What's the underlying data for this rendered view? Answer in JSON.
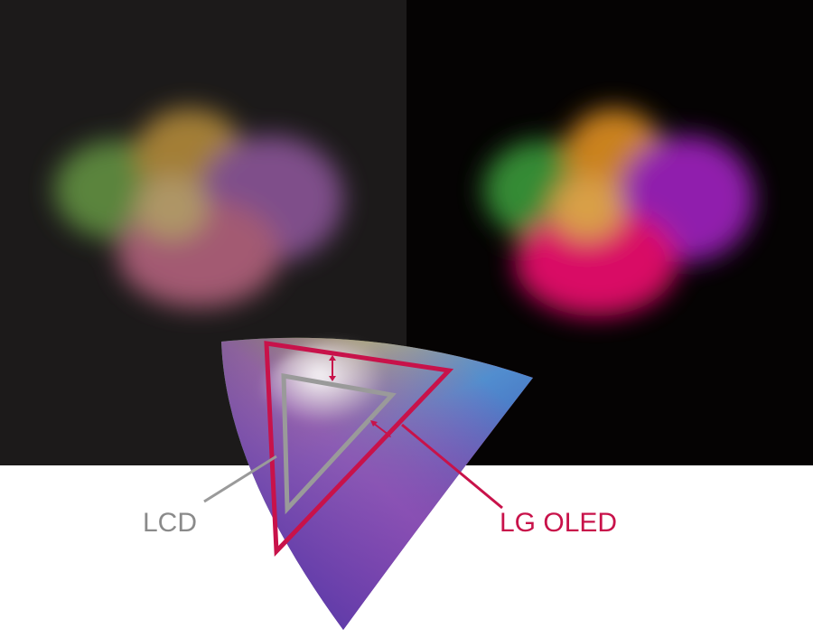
{
  "labels": {
    "lcd": "LCD",
    "oled": "LG OLED"
  }
}
